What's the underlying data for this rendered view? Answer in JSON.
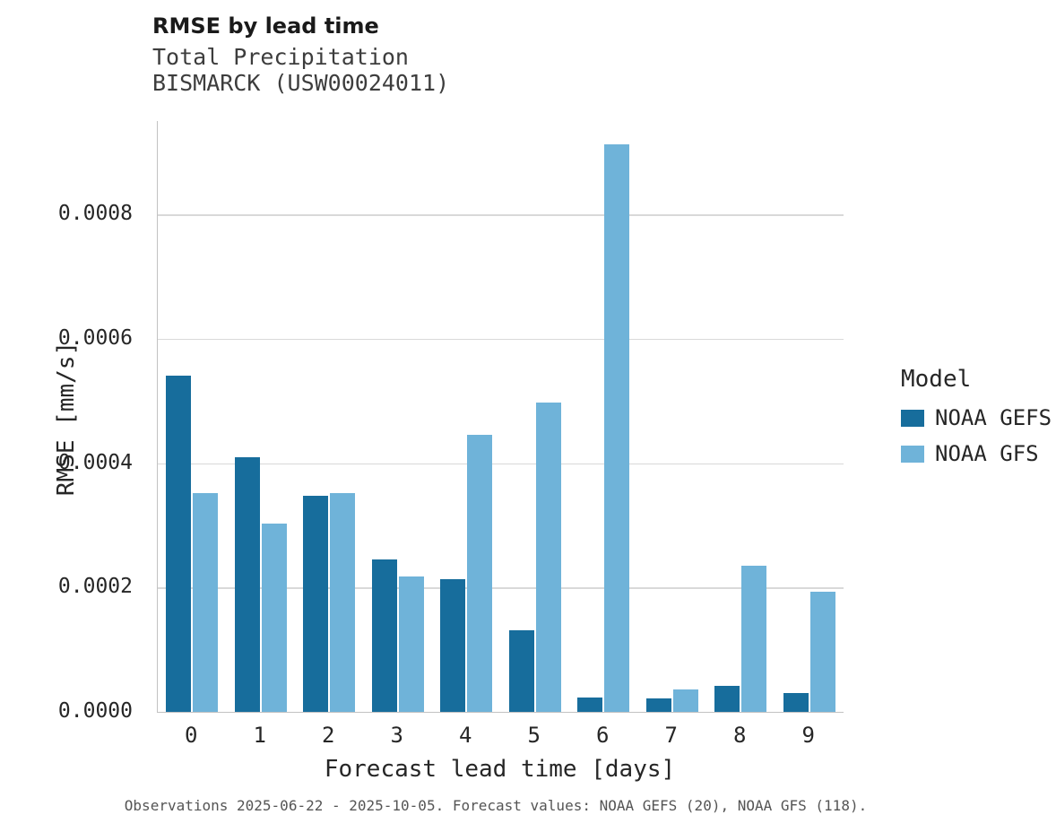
{
  "header": {
    "title": "RMSE by lead time",
    "subtitle_line1": "Total Precipitation",
    "subtitle_line2": "BISMARCK (USW00024011)"
  },
  "chart_data": {
    "type": "bar",
    "title": "RMSE by lead time",
    "subtitle": "Total Precipitation — BISMARCK (USW00024011)",
    "xlabel": "Forecast lead time [days]",
    "ylabel": "RMSE [mm/s]",
    "categories": [
      "0",
      "1",
      "2",
      "3",
      "4",
      "5",
      "6",
      "7",
      "8",
      "9"
    ],
    "series": [
      {
        "name": "NOAA GEFS",
        "color": "#176d9c",
        "values": [
          0.00054,
          0.00041,
          0.000348,
          0.000245,
          0.000214,
          0.000131,
          2.3e-05,
          2.2e-05,
          4.2e-05,
          3e-05
        ]
      },
      {
        "name": "NOAA GFS",
        "color": "#6fb3d9",
        "values": [
          0.000352,
          0.000303,
          0.000352,
          0.000218,
          0.000446,
          0.000497,
          0.000913,
          3.6e-05,
          0.000235,
          0.000193
        ]
      }
    ],
    "ylim": [
      0,
      0.00095
    ],
    "yticks": [
      {
        "value": 0.0,
        "label": "0.0000"
      },
      {
        "value": 0.0002,
        "label": "0.0002"
      },
      {
        "value": 0.0004,
        "label": "0.0004"
      },
      {
        "value": 0.0006,
        "label": "0.0006"
      },
      {
        "value": 0.0008,
        "label": "0.0008"
      }
    ],
    "grid": "horizontal",
    "legend_position": "right"
  },
  "legend": {
    "title": "Model",
    "entries": [
      {
        "label": "NOAA GEFS",
        "color": "#176d9c"
      },
      {
        "label": "NOAA GFS",
        "color": "#6fb3d9"
      }
    ]
  },
  "caption": "Observations 2025-06-22 - 2025-10-05. Forecast values: NOAA GEFS (20), NOAA GFS (118)."
}
